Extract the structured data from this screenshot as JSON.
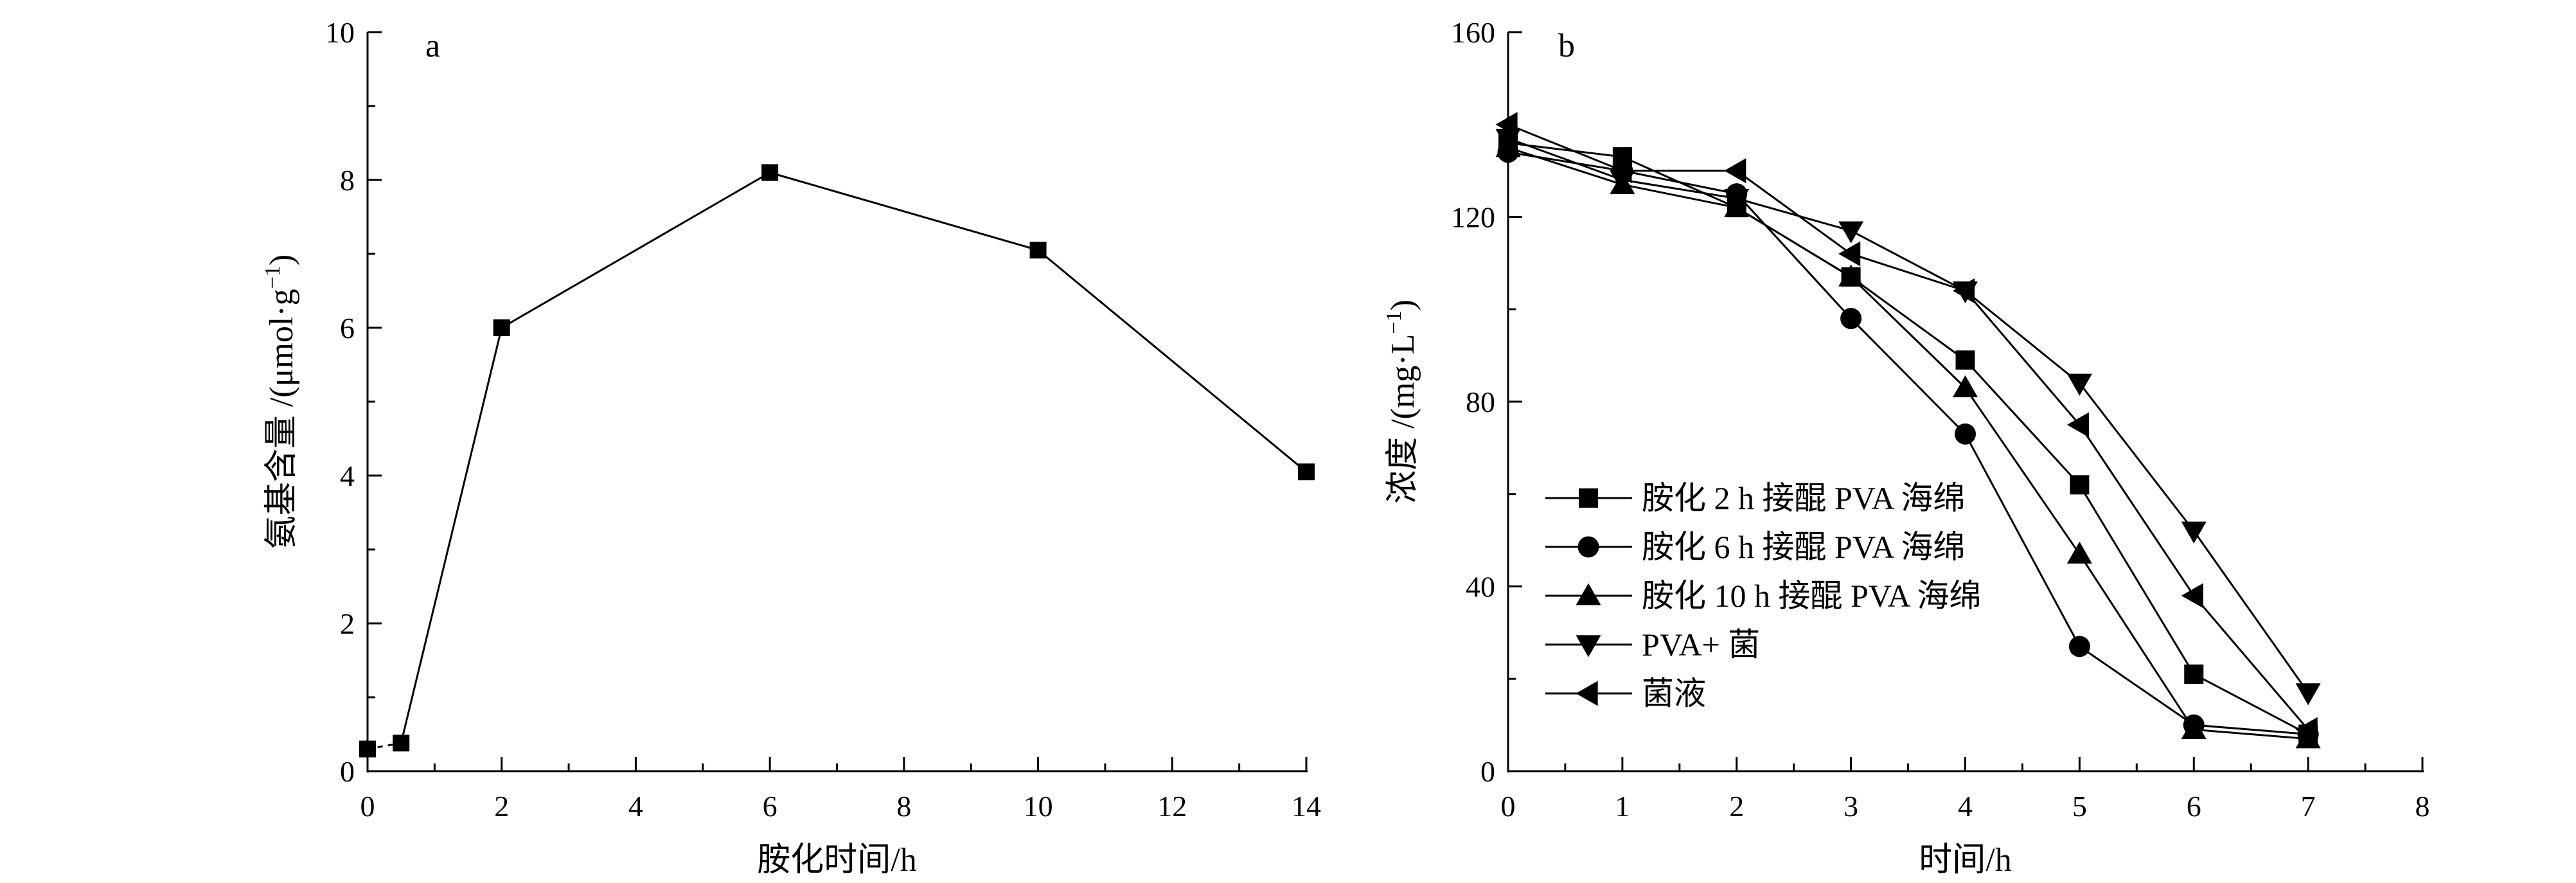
{
  "chart_data": [
    {
      "id": "a",
      "type": "line",
      "panel_label": "a",
      "xlabel": "胺化时间/h",
      "ylabel_main": "氨基含量 /(μmol·g",
      "ylabel_sup": "−1",
      "ylabel_tail": ")",
      "xlim": [
        0,
        14
      ],
      "ylim": [
        0,
        10
      ],
      "xticks": [
        0,
        2,
        4,
        6,
        8,
        10,
        12,
        14
      ],
      "yticks": [
        0,
        2,
        4,
        6,
        8,
        10
      ],
      "series": [
        {
          "marker": "square",
          "x": [
            0,
            0.5,
            2,
            6,
            10,
            14
          ],
          "y": [
            0.3,
            0.38,
            6.0,
            8.1,
            7.05,
            4.05
          ],
          "dashed_first_segment": true
        }
      ]
    },
    {
      "id": "b",
      "type": "line",
      "panel_label": "b",
      "xlabel": "时间/h",
      "ylabel_main": "浓度 /(mg·L",
      "ylabel_sup": "−1",
      "ylabel_tail": ")",
      "xlim": [
        0,
        8
      ],
      "ylim": [
        0,
        160
      ],
      "xticks": [
        0,
        1,
        2,
        3,
        4,
        5,
        6,
        7,
        8
      ],
      "yticks": [
        0,
        40,
        80,
        120,
        160
      ],
      "legend_position": "lower-left",
      "series": [
        {
          "name": "胺化 2 h 接醌 PVA 海绵",
          "marker": "square",
          "x": [
            0,
            1,
            2,
            3,
            4,
            5,
            6,
            7
          ],
          "y": [
            136,
            133,
            122,
            107,
            89,
            62,
            21,
            8
          ]
        },
        {
          "name": "胺化 6 h 接醌 PVA 海绵",
          "marker": "circle",
          "x": [
            0,
            1,
            2,
            3,
            4,
            5,
            6,
            7
          ],
          "y": [
            134,
            130,
            125,
            98,
            73,
            27,
            10,
            8
          ]
        },
        {
          "name": "胺化 10 h 接醌 PVA 海绵",
          "marker": "triangle-up",
          "x": [
            0,
            1,
            2,
            3,
            4,
            5,
            6,
            7
          ],
          "y": [
            135,
            127,
            122,
            107,
            83,
            47,
            9,
            7
          ]
        },
        {
          "name": "PVA+ 菌",
          "marker": "triangle-down",
          "x": [
            0,
            1,
            2,
            3,
            4,
            5,
            6,
            7
          ],
          "y": [
            137,
            128,
            124,
            117,
            104,
            84,
            52,
            17
          ]
        },
        {
          "name": "菌液",
          "marker": "triangle-left",
          "x": [
            0,
            1,
            2,
            3,
            4,
            5,
            6,
            7
          ],
          "y": [
            140,
            130,
            130,
            112,
            104,
            75,
            38,
            9
          ]
        }
      ]
    }
  ]
}
